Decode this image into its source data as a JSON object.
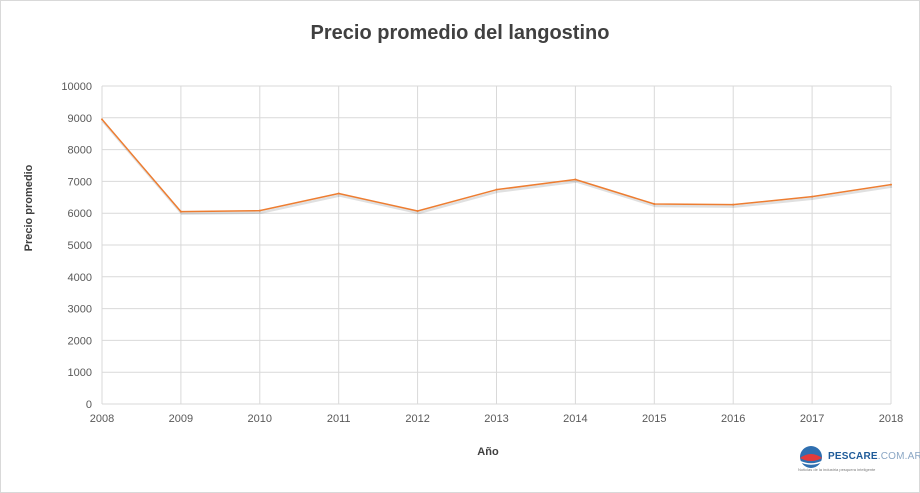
{
  "chart_data": {
    "type": "line",
    "title": "Precio promedio del langostino",
    "xlabel": "Año",
    "ylabel": "Precio promedio",
    "x": [
      "2008",
      "2009",
      "2010",
      "2011",
      "2012",
      "2013",
      "2014",
      "2015",
      "2016",
      "2017",
      "2018"
    ],
    "series": [
      {
        "values": [
          8950,
          6050,
          6080,
          6620,
          6070,
          6740,
          7060,
          6290,
          6270,
          6520,
          6900
        ]
      }
    ],
    "ylim": [
      0,
      10000
    ],
    "yticks": [
      0,
      1000,
      2000,
      3000,
      4000,
      5000,
      6000,
      7000,
      8000,
      9000,
      10000
    ],
    "grid": true,
    "legend": "none",
    "colors": {
      "line": "#ed7d31",
      "grid": "#d9d9d9",
      "text": "#595959"
    }
  },
  "logo": {
    "brand": "PESCARE",
    "suffix": ".COM.AR",
    "tagline": "Noticias de la industria pesquera inteligente"
  }
}
